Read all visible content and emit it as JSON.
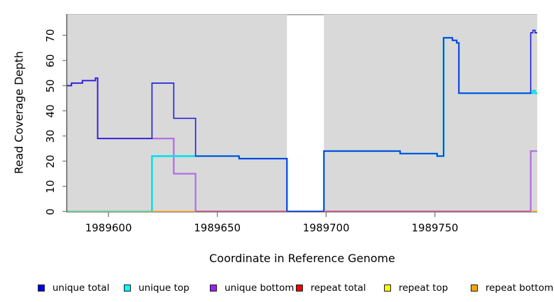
{
  "chart_data": {
    "type": "line",
    "subtype": "step-coverage-plot",
    "title": "",
    "xlabel": "Coordinate in Reference Genome",
    "ylabel": "Read Coverage Depth",
    "xlim": [
      1989581,
      1989797
    ],
    "ylim": [
      0,
      78
    ],
    "x_ticks": [
      1989600,
      1989650,
      1989700,
      1989750
    ],
    "x_tick_labels": [
      "1989600",
      "1989650",
      "1989700",
      "1989750"
    ],
    "y_ticks": [
      0,
      10,
      20,
      30,
      40,
      50,
      60,
      70
    ],
    "panel_bg": "#d9d9d9",
    "panel_top_edge": "#bfbfbf",
    "gap_region": {
      "from": 1989682,
      "to": 1989699,
      "fill": "#ffffff",
      "top_line": "#999999"
    },
    "baseline_segments": [
      {
        "from": 1989581,
        "to": 1989620,
        "color": "#8bd28b"
      },
      {
        "from": 1989620,
        "to": 1989640,
        "color": "#ffa41e"
      },
      {
        "from": 1989640,
        "to": 1989682,
        "color": "#c85078"
      },
      {
        "from": 1989699,
        "to": 1989794,
        "color": "#c85078"
      },
      {
        "from": 1989794,
        "to": 1989797,
        "color": "#ffa41e"
      }
    ],
    "series": [
      {
        "name": "unique total",
        "color": "#2626da",
        "width": 1.7,
        "z": 3,
        "draw": true,
        "points": [
          [
            1989581,
            50
          ],
          [
            1989583,
            51
          ],
          [
            1989588,
            52
          ],
          [
            1989594,
            53
          ],
          [
            1989595,
            29
          ],
          [
            1989620,
            51
          ],
          [
            1989630,
            37
          ],
          [
            1989640,
            22
          ],
          [
            1989660,
            21
          ],
          [
            1989682,
            0
          ],
          [
            1989699,
            24
          ],
          [
            1989734,
            23
          ],
          [
            1989751,
            22
          ],
          [
            1989754,
            69
          ],
          [
            1989758,
            68
          ],
          [
            1989760,
            67
          ],
          [
            1989761,
            47
          ],
          [
            1989794,
            71
          ],
          [
            1989795,
            72
          ],
          [
            1989796,
            71
          ]
        ],
        "x_end": 1989797
      },
      {
        "name": "unique top",
        "color": "#00e4ee",
        "width": 2.6,
        "z": 2,
        "draw": true,
        "points": [
          [
            1989581,
            0
          ],
          [
            1989620,
            22
          ],
          [
            1989660,
            21
          ],
          [
            1989682,
            0
          ],
          [
            1989699,
            24
          ],
          [
            1989734,
            23
          ],
          [
            1989751,
            22
          ],
          [
            1989754,
            69
          ],
          [
            1989758,
            68
          ],
          [
            1989760,
            67
          ],
          [
            1989761,
            47
          ],
          [
            1989795,
            48
          ],
          [
            1989796,
            47
          ]
        ],
        "x_end": 1989797
      },
      {
        "name": "unique bottom",
        "color": "#ac5ce8",
        "width": 2.3,
        "opacity": 0.85,
        "z": 1,
        "draw": true,
        "points": [
          [
            1989581,
            50
          ],
          [
            1989583,
            51
          ],
          [
            1989588,
            52
          ],
          [
            1989594,
            53
          ],
          [
            1989595,
            29
          ],
          [
            1989630,
            15
          ],
          [
            1989640,
            0
          ],
          [
            1989794,
            24
          ]
        ],
        "x_end": 1989797
      },
      {
        "name": "repeat total",
        "color": "#ee0000",
        "width": 1.4,
        "z": 0,
        "draw": false,
        "points": [
          [
            1989581,
            0
          ]
        ],
        "x_end": 1989797
      },
      {
        "name": "repeat top",
        "color": "#ffff00",
        "width": 1.4,
        "z": 0,
        "draw": false,
        "points": [
          [
            1989581,
            0
          ]
        ],
        "x_end": 1989797
      },
      {
        "name": "repeat bottom",
        "color": "#ffa500",
        "width": 1.4,
        "z": 0,
        "draw": false,
        "points": [
          [
            1989581,
            0
          ]
        ],
        "x_end": 1989797
      }
    ],
    "legend_position": "bottom"
  },
  "legend": {
    "items": [
      {
        "label": "unique total",
        "color": "#0000ee"
      },
      {
        "label": "unique top",
        "color": "#00ffff"
      },
      {
        "label": "unique bottom",
        "color": "#a020f0"
      },
      {
        "label": "repeat total",
        "color": "#ee0000"
      },
      {
        "label": "repeat top",
        "color": "#ffff00"
      },
      {
        "label": "repeat bottom",
        "color": "#ffa500"
      }
    ]
  }
}
